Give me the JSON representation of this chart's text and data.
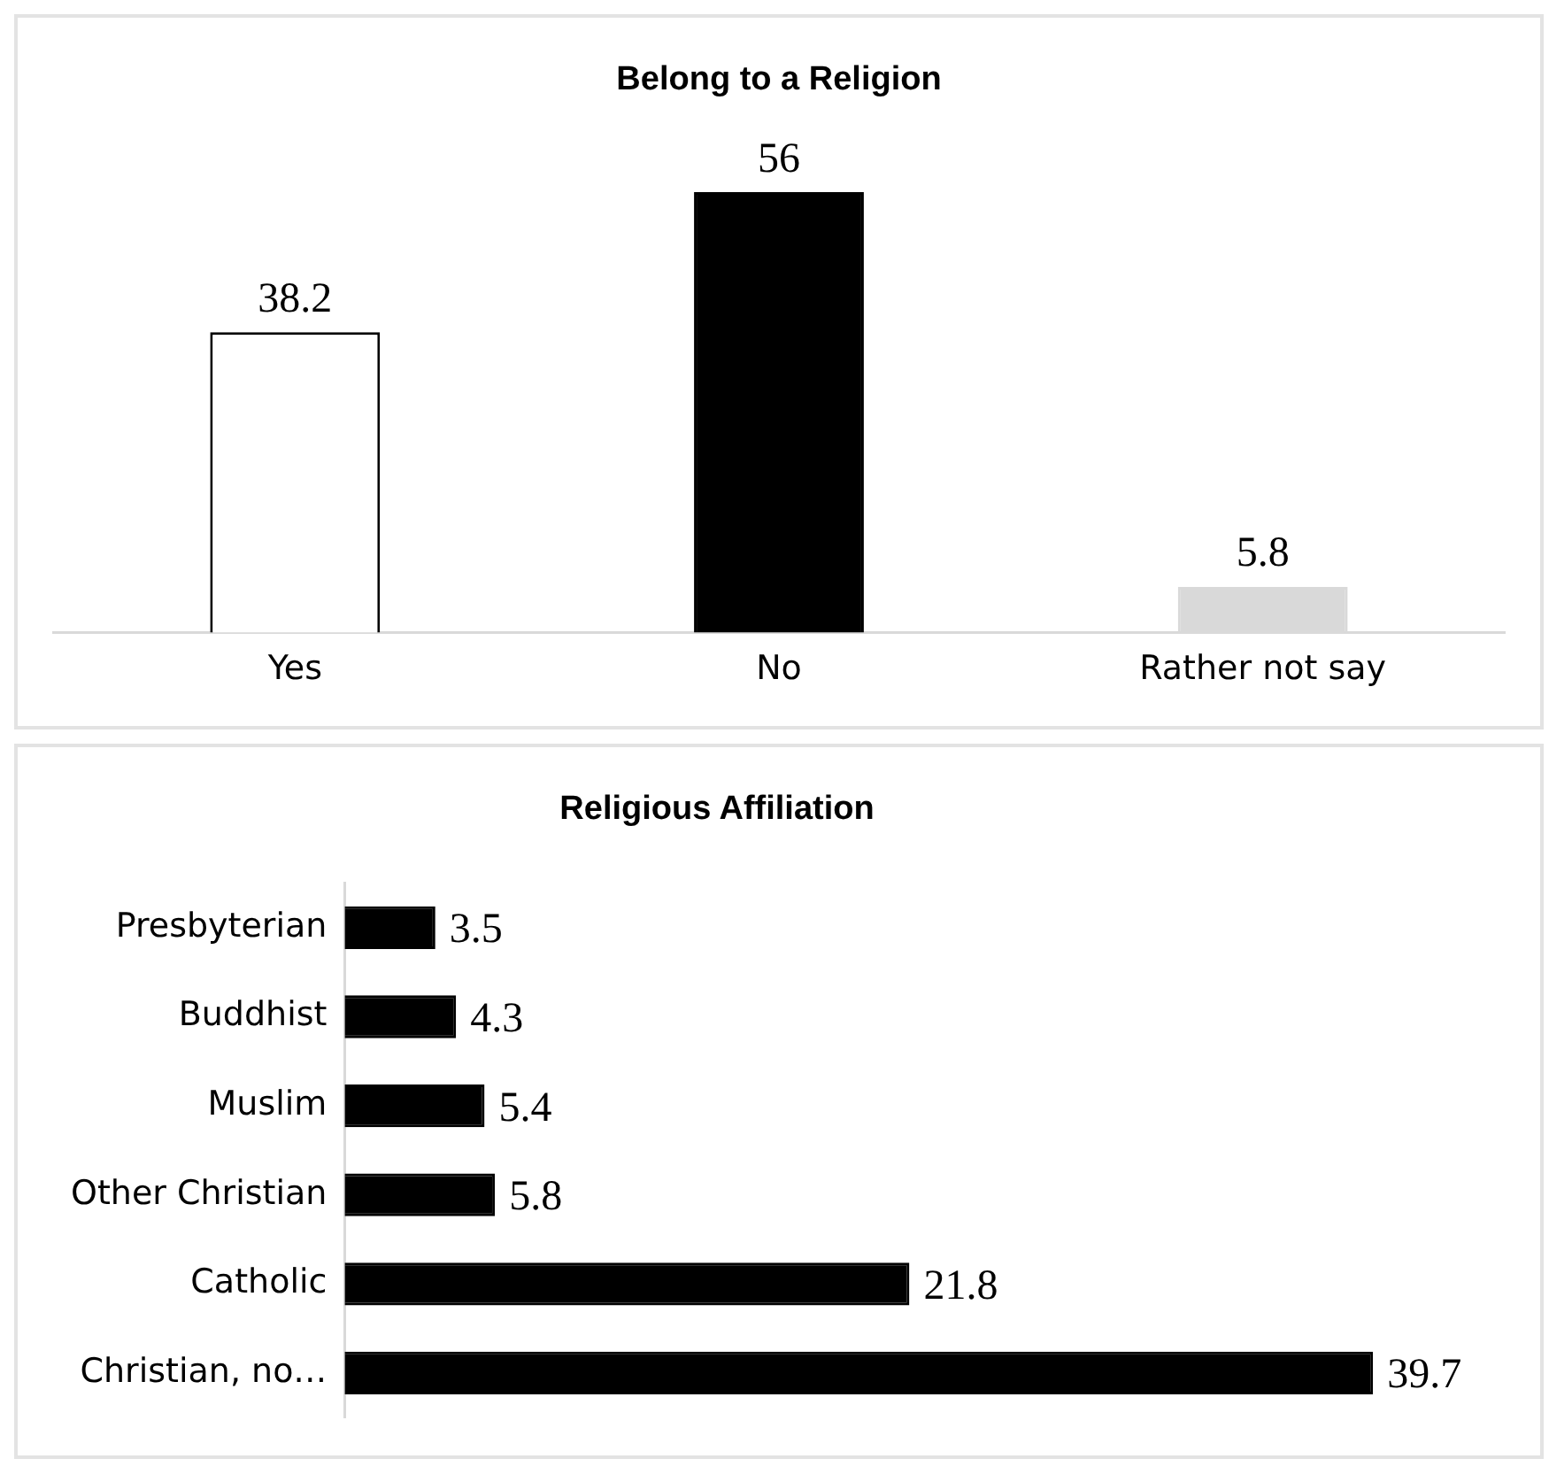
{
  "chart_data": [
    {
      "type": "bar",
      "title": "Belong to a Religion",
      "categories": [
        "Yes",
        "No",
        "Rather not say"
      ],
      "values": [
        38.2,
        56,
        5.8
      ],
      "colors": [
        "#ffffff",
        "#000000",
        "#d9d9d9"
      ],
      "data_labels": true,
      "tick_labels": "x"
    },
    {
      "type": "bar",
      "orientation": "horizontal",
      "title": "Religious Affiliation",
      "categories": [
        "Presbyterian",
        "Buddhist",
        "Muslim",
        "Other Christian",
        "Catholic",
        "Christian, no…"
      ],
      "values": [
        3.5,
        4.3,
        5.4,
        5.8,
        21.8,
        39.7
      ],
      "color": "#000000",
      "data_labels": true,
      "tick_labels": "y"
    }
  ]
}
